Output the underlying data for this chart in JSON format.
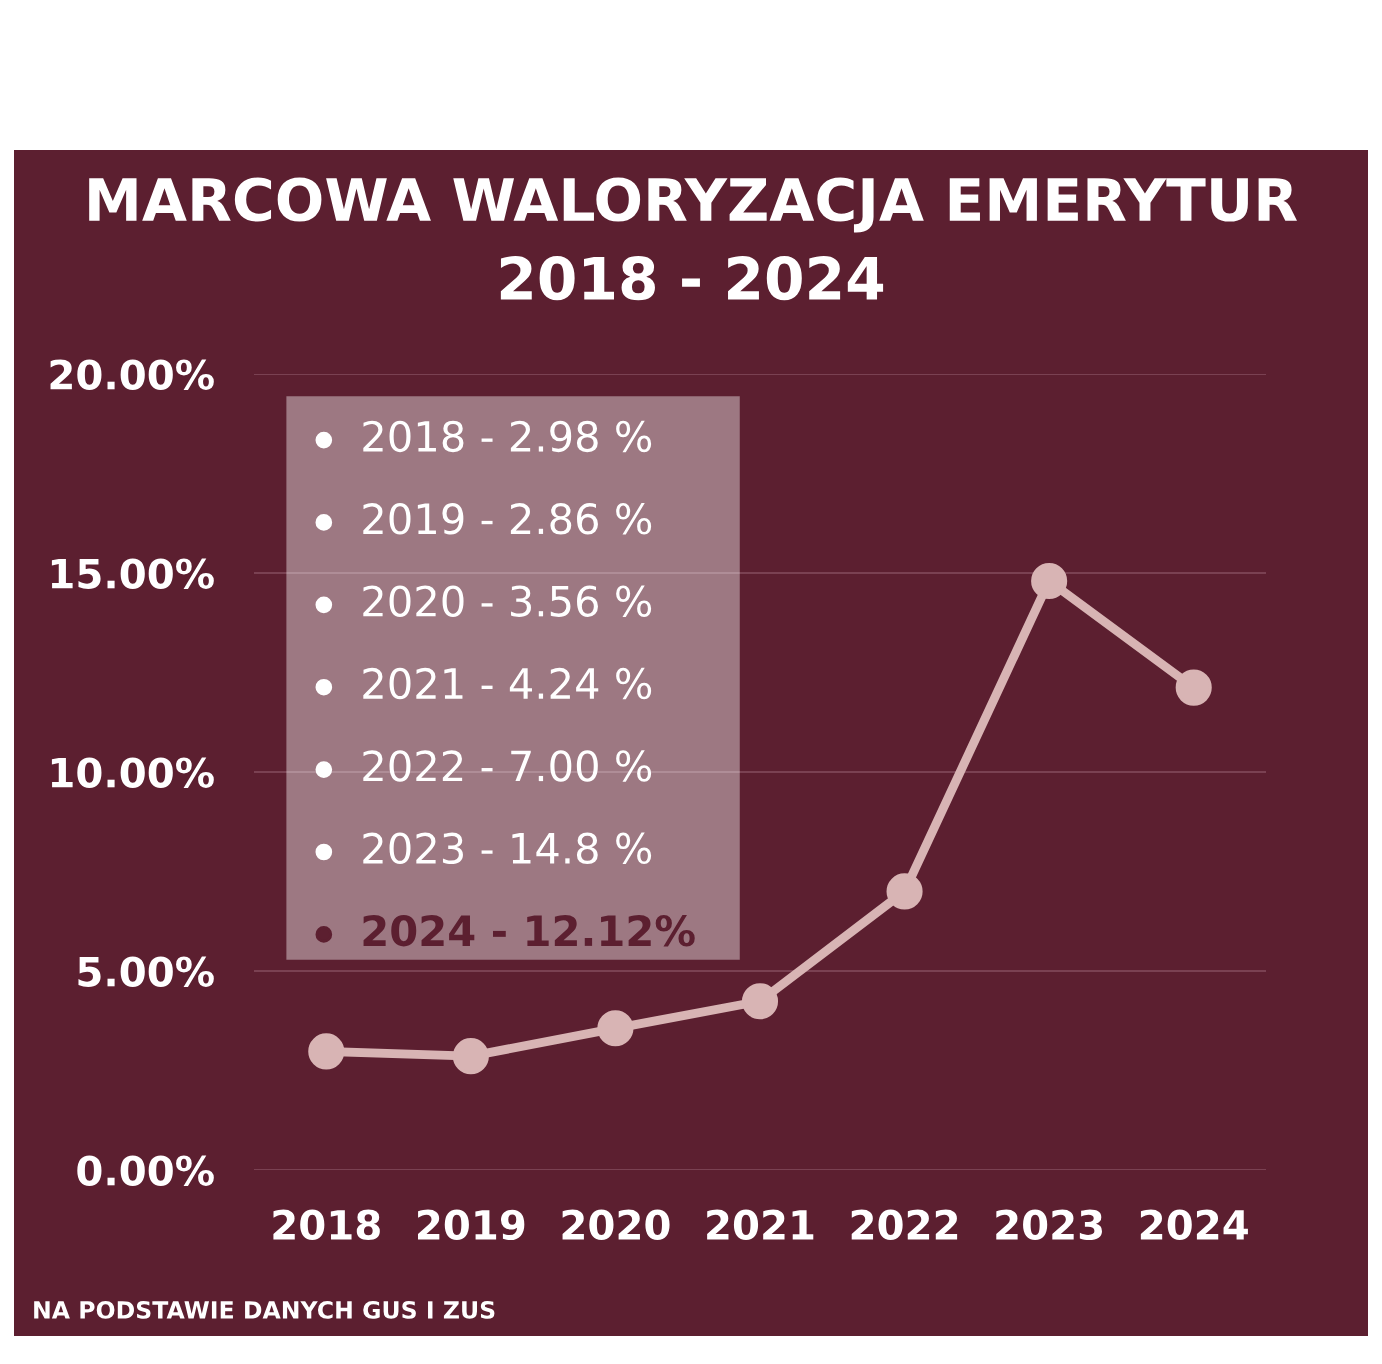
{
  "chart_data": {
    "type": "line",
    "title": "MARCOWA WALORYZACJA EMERYTUR\n2018 - 2024",
    "categories": [
      "2018",
      "2019",
      "2020",
      "2021",
      "2022",
      "2023",
      "2024"
    ],
    "series": [
      {
        "color": "#d8b4b4",
        "values": [
          2.98,
          2.86,
          3.56,
          4.24,
          7.0,
          14.8,
          12.12
        ]
      }
    ],
    "ylim": [
      0,
      20
    ],
    "yticks": [
      {
        "value": 0,
        "label": "0.00%"
      },
      {
        "value": 5,
        "label": "5.00%"
      },
      {
        "value": 10,
        "label": "10.00%"
      },
      {
        "value": 15,
        "label": "15.00%"
      },
      {
        "value": 20,
        "label": "20.00%"
      }
    ],
    "grid": "y",
    "marker": "circle",
    "line_style": "solid",
    "annotations": [
      "2018 - 2.98 %",
      "2019 - 2.86 %",
      "2020 - 3.56 %",
      "2021 - 4.24 %",
      "2022 - 7.00 %",
      "2023 - 14.8 %",
      "2024 - 12.12%",
      "NA PODSTAWIE DANYCH GUS I ZUS"
    ]
  }
}
